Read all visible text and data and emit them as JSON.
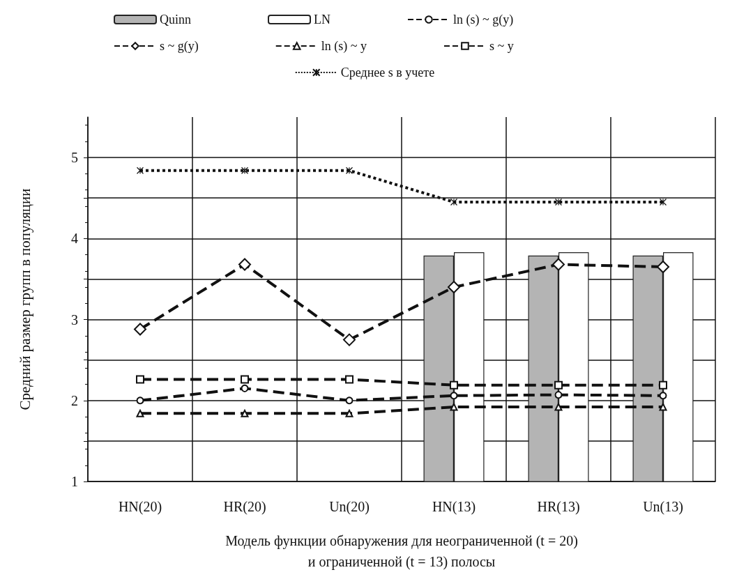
{
  "chart_data": {
    "type": "bar",
    "categories": [
      "HN(20)",
      "HR(20)",
      "Un(20)",
      "HN(13)",
      "HR(13)",
      "Un(13)"
    ],
    "xlabel": "Модель функции обнаружения для неограниченной (t = 20)\nи ограниченной (t = 13) полосы",
    "ylabel": "Средний размер групп в популяции",
    "ylim": [
      1,
      5.5
    ],
    "yticks": [
      1,
      {
        "value": 1.5,
        "label": null
      },
      2,
      {
        "value": 2.5,
        "label": null
      },
      3,
      {
        "value": 3.5,
        "label": null
      },
      4,
      {
        "value": 4.5,
        "label": null
      },
      5
    ],
    "grid": true,
    "legend": "top",
    "series": [
      {
        "name": "Quinn",
        "color": "#b4b4b4",
        "values": [
          null,
          null,
          null,
          3.79,
          3.79,
          3.79
        ]
      },
      {
        "name": "LN",
        "color": "#ffffff",
        "values": [
          null,
          null,
          null,
          3.83,
          3.83,
          3.83
        ]
      },
      {
        "name": "ln (s) ~ g(y)",
        "type": "line",
        "color": "#111111",
        "marker": "circle",
        "line_style": "dashed",
        "values": [
          2.0,
          2.15,
          2.0,
          2.06,
          2.07,
          2.06
        ]
      },
      {
        "name": "s ~ g(y)",
        "type": "line",
        "color": "#111111",
        "marker": "diamond",
        "line_style": "dashed",
        "values": [
          2.88,
          3.68,
          2.75,
          3.4,
          3.68,
          3.65
        ]
      },
      {
        "name": "ln (s) ~ y",
        "type": "line",
        "color": "#111111",
        "marker": "triangle",
        "line_style": "dashed",
        "values": [
          1.84,
          1.84,
          1.84,
          1.92,
          1.92,
          1.92
        ]
      },
      {
        "name": "s ~ y",
        "type": "line",
        "color": "#111111",
        "marker": "square",
        "line_style": "dashed",
        "values": [
          2.26,
          2.26,
          2.26,
          2.19,
          2.19,
          2.19
        ]
      },
      {
        "name": "Среднее s в учете",
        "type": "line",
        "color": "#111111",
        "marker": "cross",
        "line_style": "dotted",
        "values": [
          4.84,
          4.84,
          4.84,
          4.45,
          4.45,
          4.45
        ]
      }
    ]
  }
}
